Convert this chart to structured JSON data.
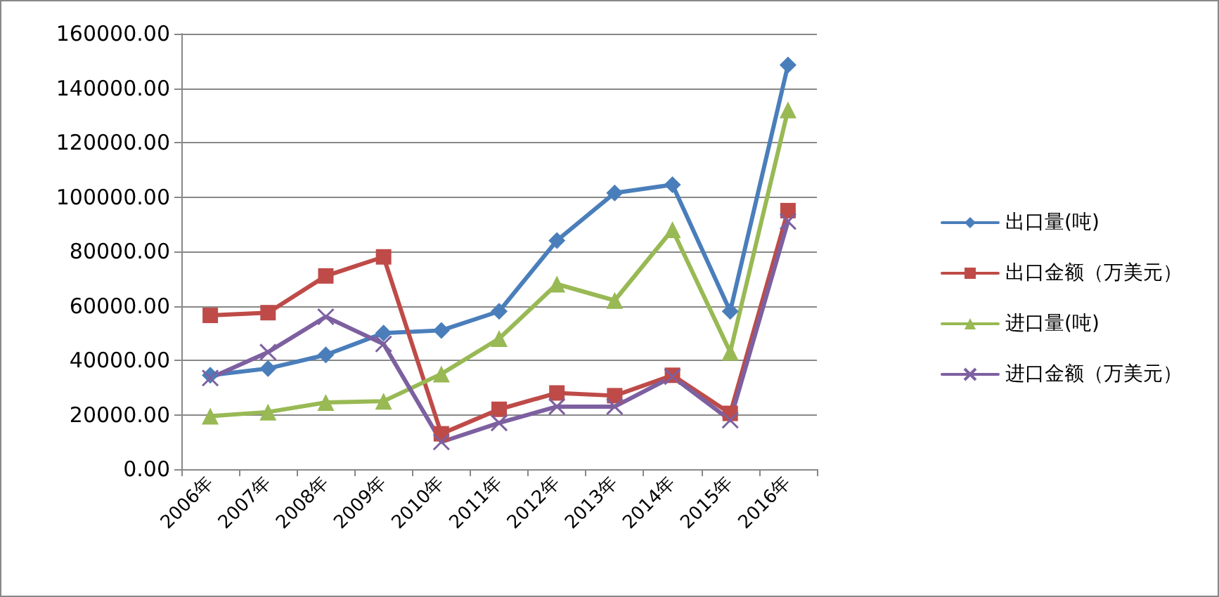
{
  "chart_data": {
    "type": "line",
    "categories": [
      "2006年",
      "2007年",
      "2008年",
      "2009年",
      "2010年",
      "2011年",
      "2012年",
      "2013年",
      "2014年",
      "2015年",
      "2016年"
    ],
    "series": [
      {
        "name": "出口量(吨)",
        "color": "#4a7ebb",
        "marker": "diamond",
        "values": [
          34500,
          37000,
          42000,
          50000,
          51000,
          58000,
          84000,
          101500,
          104500,
          58000,
          148500
        ]
      },
      {
        "name": "出口金额（万美元）",
        "color": "#be4b48",
        "marker": "square",
        "values": [
          56500,
          57500,
          71000,
          78000,
          13000,
          22000,
          28000,
          27000,
          34500,
          20500,
          95000
        ]
      },
      {
        "name": "进口量(吨)",
        "color": "#98b954",
        "marker": "triangle",
        "values": [
          19500,
          21000,
          24500,
          25000,
          35000,
          48000,
          68000,
          62000,
          88000,
          43000,
          132000
        ]
      },
      {
        "name": "进口金额（万美元）",
        "color": "#7d60a0",
        "marker": "cross",
        "values": [
          33500,
          43000,
          56000,
          46000,
          10000,
          17000,
          23000,
          23000,
          34000,
          18000,
          91000
        ]
      }
    ],
    "ylim": [
      0,
      160000
    ],
    "yticks": [
      {
        "value": 0,
        "label": "0.00"
      },
      {
        "value": 20000,
        "label": "20000.00"
      },
      {
        "value": 40000,
        "label": "40000.00"
      },
      {
        "value": 60000,
        "label": "60000.00"
      },
      {
        "value": 80000,
        "label": "80000.00"
      },
      {
        "value": 100000,
        "label": "100000.00"
      },
      {
        "value": 120000,
        "label": "120000.00"
      },
      {
        "value": 140000,
        "label": "140000.00"
      },
      {
        "value": 160000,
        "label": "160000.00"
      }
    ],
    "grid": "y",
    "legend": "right",
    "line_style": "solid"
  }
}
